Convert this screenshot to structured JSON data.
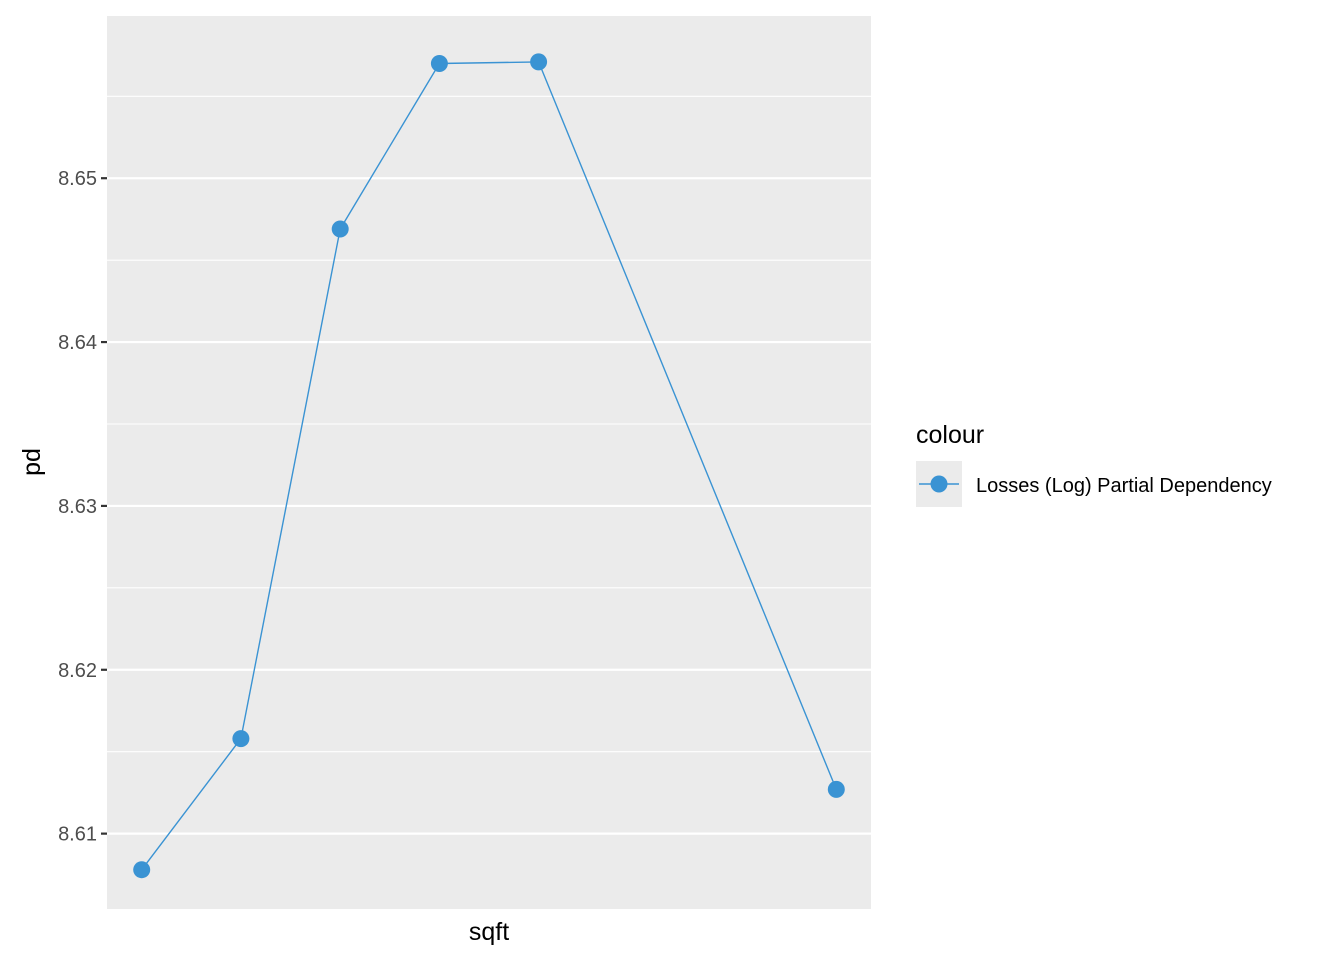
{
  "chart_data": {
    "type": "line",
    "xlabel": "sqft",
    "ylabel": "pd",
    "ylim": [
      8.6054,
      8.6599
    ],
    "y_ticks": [
      8.61,
      8.62,
      8.63,
      8.64,
      8.65
    ],
    "y_tick_labels": [
      "8.61",
      "8.62",
      "8.63",
      "8.64",
      "8.65"
    ],
    "x_tick_labels": [],
    "grid": true,
    "legend": {
      "title": "colour",
      "placement": "right",
      "entries": [
        "Losses (Log) Partial Dependency"
      ]
    },
    "series": [
      {
        "name": "Losses (Log) Partial Dependency",
        "color": "#3a93d3",
        "x": [
          1,
          2,
          3,
          4,
          5,
          8
        ],
        "y": [
          8.6078,
          8.6158,
          8.6469,
          8.657,
          8.6571,
          8.6127
        ]
      }
    ]
  }
}
